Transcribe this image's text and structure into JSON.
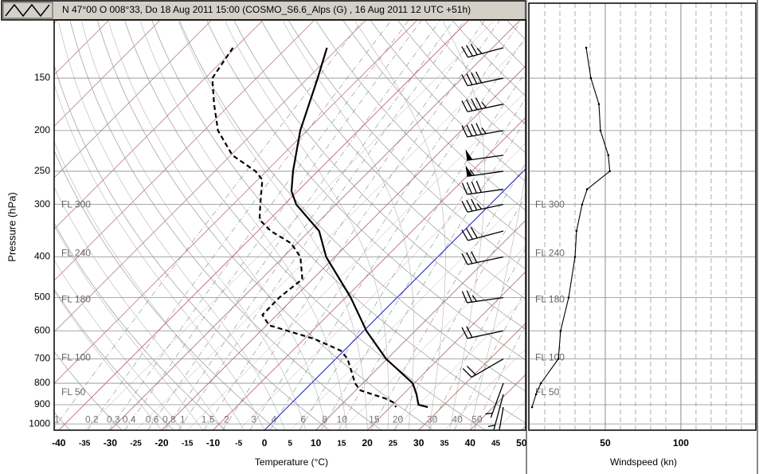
{
  "chart_data": {
    "type": "skewt",
    "title": "N 47°00 O 008°33, Do 18 Aug 2011 15:00 (COSMO_S6.6_Alps (G) , 16 Aug 2011 12 UTC +51h)",
    "x_label": "Temperature (°C)",
    "y_label": "Pressure (hPa)",
    "xlim": [
      -40.9,
      50.8
    ],
    "ylim": [
      1035,
      109
    ],
    "xticks": [
      -40,
      -35,
      -30,
      -25,
      -20,
      -15,
      -10,
      -5,
      0,
      5,
      10,
      15,
      20,
      25,
      30,
      35,
      40,
      45,
      50
    ],
    "yticks": [
      150,
      200,
      250,
      300,
      400,
      500,
      600,
      700,
      800,
      900,
      1000
    ],
    "isotherm_color": "#b05a5a",
    "zero_isotherm_color": "#2233bb",
    "series": [
      {
        "color": "#000000",
        "dash": "solid",
        "pressure": [
          127,
          150,
          200,
          250,
          279,
          300,
          347,
          400,
          500,
          600,
          700,
          800,
          850,
          900,
          912
        ],
        "values": [
          -62.2,
          -58.1,
          -51.3,
          -44.8,
          -41.2,
          -37.7,
          -28.1,
          -21.7,
          -9.0,
          0.5,
          9.8,
          19.7,
          22.6,
          25.0,
          27.3
        ]
      },
      {
        "color": "#000000",
        "dash": "dashed",
        "pressure": [
          127,
          150,
          173,
          200,
          229,
          250,
          262,
          300,
          326,
          347,
          371,
          400,
          452,
          500,
          550,
          582,
          627,
          669,
          700,
          800,
          832,
          870,
          889,
          912
        ],
        "values": [
          -80.5,
          -78.6,
          -73.2,
          -67.3,
          -59.7,
          -52.1,
          -49.1,
          -44.7,
          -41.9,
          -37.5,
          -31.2,
          -26.7,
          -22.0,
          -22.9,
          -22.8,
          -19.5,
          -8.1,
          -0.6,
          2.3,
          8.5,
          10.9,
          17.4,
          19.7,
          21.1
        ]
      }
    ],
    "mixing_ratios": [
      {
        "value": 0.1,
        "label": "1"
      },
      0.2,
      0.3,
      0.4,
      0.6,
      0.8,
      1,
      1.5,
      2,
      3,
      4,
      6,
      8,
      10,
      15,
      20,
      30,
      40,
      50
    ],
    "flight_levels": {
      "labels": [
        "FL 300",
        "FL 240",
        "FL 180",
        "FL 100",
        "FL 50"
      ],
      "pressure": [
        301,
        393,
        506,
        697,
        843
      ]
    },
    "wind": {
      "x_label": "Windspeed (kn)",
      "xlim": [
        0,
        149
      ],
      "xticks": [
        50,
        100
      ],
      "pressure": [
        127,
        150,
        173,
        200,
        229,
        250,
        276,
        300,
        347,
        400,
        500,
        600,
        700,
        800,
        850,
        912
      ],
      "values": [
        37.4,
        40.5,
        45.8,
        46.8,
        52,
        53,
        38,
        34.7,
        31,
        30,
        25.8,
        20.5,
        19,
        7.4,
        4.2,
        1.6
      ],
      "direction": [
        255,
        258,
        258,
        260,
        262,
        262,
        262,
        258,
        255,
        258,
        262,
        258,
        240,
        200,
        195,
        190
      ]
    }
  }
}
